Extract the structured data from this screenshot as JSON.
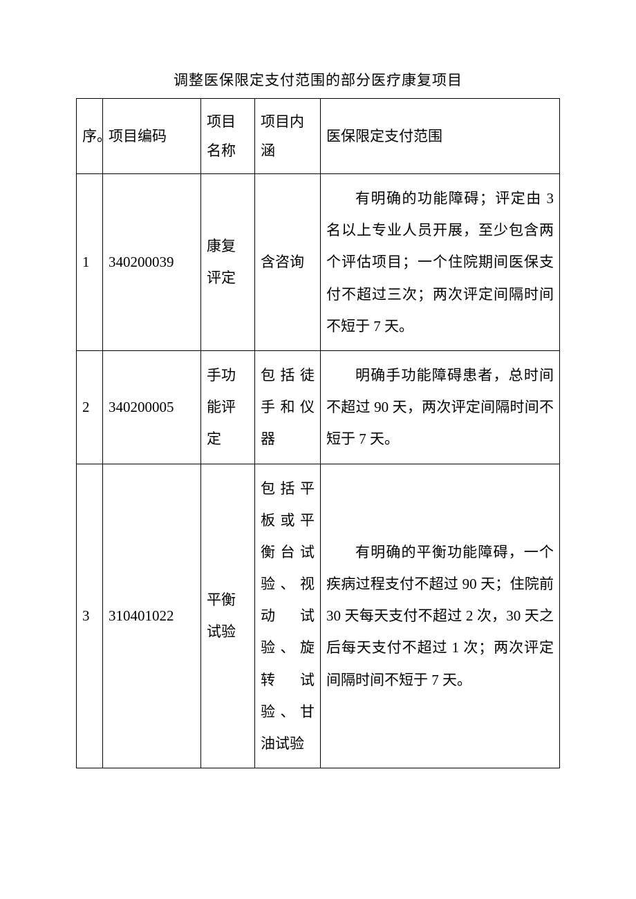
{
  "title": "调整医保限定支付范围的部分医疗康复项目",
  "table": {
    "headers": {
      "seq": "序。",
      "code": "项目编码",
      "name": "项目名称",
      "content": "项目内涵",
      "scope": "医保限定支付范围"
    },
    "rows": [
      {
        "seq": "1",
        "code": "340200039",
        "name": "康复评定",
        "content": "含咨询",
        "scope": "有明确的功能障碍；评定由 3 名以上专业人员开展，至少包含两个评估项目；一个住院期间医保支付不超过三次；两次评定间隔时间不短于 7 天。"
      },
      {
        "seq": "2",
        "code": "340200005",
        "name": "手功能评定",
        "content": "包括徒手和仪器",
        "scope": "明确手功能障碍患者，总时间不超过 90 天，两次评定间隔时间不短于 7 天。"
      },
      {
        "seq": "3",
        "code": "310401022",
        "name": "平衡试验",
        "content": "包括平板或平衡台试验、视动试验、旋转试验、甘油试验",
        "scope": "有明确的平衡功能障碍，一个疾病过程支付不超过 90 天；住院前 30 天每天支付不超过 2 次，30 天之后每天支付不超过 1 次；两次评定间隔时间不短于 7 天。"
      }
    ]
  },
  "styling": {
    "background_color": "#ffffff",
    "border_color": "#000000",
    "text_color": "#000000",
    "font_family": "SimSun",
    "title_fontsize": 21,
    "cell_fontsize": 21,
    "line_height": 2.2,
    "column_widths": {
      "seq": 38,
      "code": 142,
      "name": 78,
      "content": 95
    }
  }
}
